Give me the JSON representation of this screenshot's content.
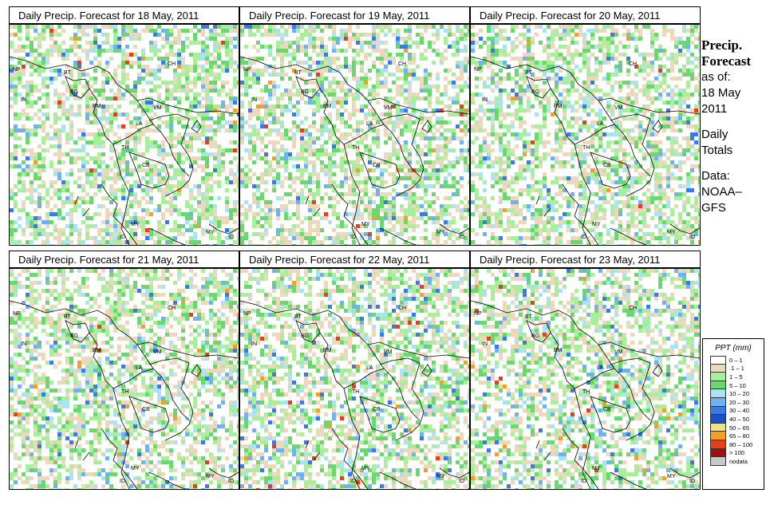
{
  "panels": [
    {
      "title": "Daily Precip. Forecast for  18 May, 2011"
    },
    {
      "title": "Daily Precip. Forecast for  19 May, 2011"
    },
    {
      "title": "Daily Precip. Forecast for  20 May, 2011"
    },
    {
      "title": "Daily Precip. Forecast for  21 May, 2011"
    },
    {
      "title": "Daily Precip. Forecast for  22 May, 2011"
    },
    {
      "title": "Daily Precip. Forecast for  23 May, 2011"
    }
  ],
  "country_labels": {
    "np": "NP",
    "bt": "BT",
    "bg": "BG",
    "in": "IN",
    "ch": "CH",
    "bm": "BM",
    "vm": "VM",
    "la": "LA",
    "th": "TH",
    "cb": "CB",
    "my": "MY",
    "my2": "MY",
    "id": "ID",
    "id2": "ID"
  },
  "sidebar": {
    "title_line1": "Precip.",
    "title_line2": "Forecast",
    "as_of": "as of:",
    "date_line1": "18 May",
    "date_line2": "2011",
    "daily_line1": "Daily",
    "daily_line2": "Totals",
    "data_line1": "Data:",
    "data_line2": "NOAA–",
    "data_line3": "GFS"
  },
  "legend": {
    "title": "PPT (mm)",
    "items": [
      {
        "label": "0 – 1",
        "color": "#ffffff"
      },
      {
        "label": ".1 – 1",
        "color": "#ecd9bd"
      },
      {
        "label": "1 – 5",
        "color": "#a9ee9a"
      },
      {
        "label": "5 – 10",
        "color": "#6ad86f"
      },
      {
        "label": "10 – 20",
        "color": "#aae3f3"
      },
      {
        "label": "20 – 30",
        "color": "#6fb2ee"
      },
      {
        "label": "30 – 40",
        "color": "#3a7ae6"
      },
      {
        "label": "40 – 50",
        "color": "#2050c8"
      },
      {
        "label": "50 – 65",
        "color": "#f5e27a"
      },
      {
        "label": "65 – 80",
        "color": "#f5a020"
      },
      {
        "label": "80 – 100",
        "color": "#e34020"
      },
      {
        "label": "> 100",
        "color": "#a01010"
      },
      {
        "label": "nodata",
        "color": "#c8c8c8"
      }
    ]
  }
}
